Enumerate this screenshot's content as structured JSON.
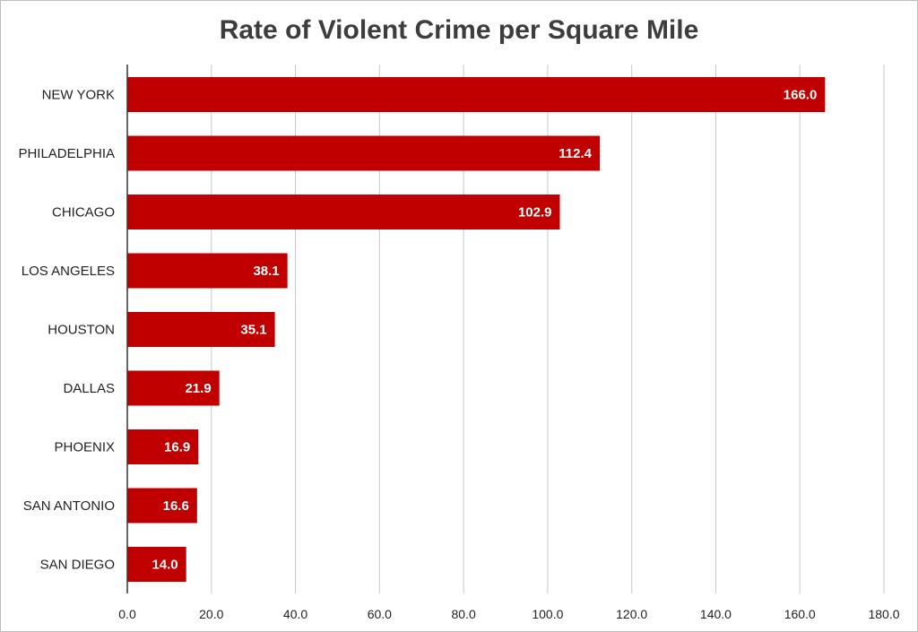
{
  "chart_data": {
    "type": "bar",
    "orientation": "horizontal",
    "title": "Rate of Violent Crime per Square Mile",
    "xlabel": "",
    "ylabel": "",
    "categories": [
      "NEW YORK",
      "PHILADELPHIA",
      "CHICAGO",
      "LOS ANGELES",
      "HOUSTON",
      "DALLAS",
      "PHOENIX",
      "SAN ANTONIO",
      "SAN DIEGO"
    ],
    "values": [
      166.0,
      112.4,
      102.9,
      38.1,
      35.1,
      21.9,
      16.9,
      16.6,
      14.0
    ],
    "value_labels": [
      "166.0",
      "112.4",
      "102.9",
      "38.1",
      "35.1",
      "21.9",
      "16.9",
      "16.6",
      "14.0"
    ],
    "xlim": [
      0,
      180
    ],
    "x_ticks": [
      0,
      20,
      40,
      60,
      80,
      100,
      120,
      140,
      160,
      180
    ],
    "x_tick_labels": [
      "0.0",
      "20.0",
      "40.0",
      "60.0",
      "80.0",
      "100.0",
      "120.0",
      "140.0",
      "160.0",
      "180.0"
    ],
    "grid": true,
    "legend": "none",
    "bar_color": "#c00000",
    "grid_color": "#c8c8c8",
    "axis_color": "#333333"
  }
}
